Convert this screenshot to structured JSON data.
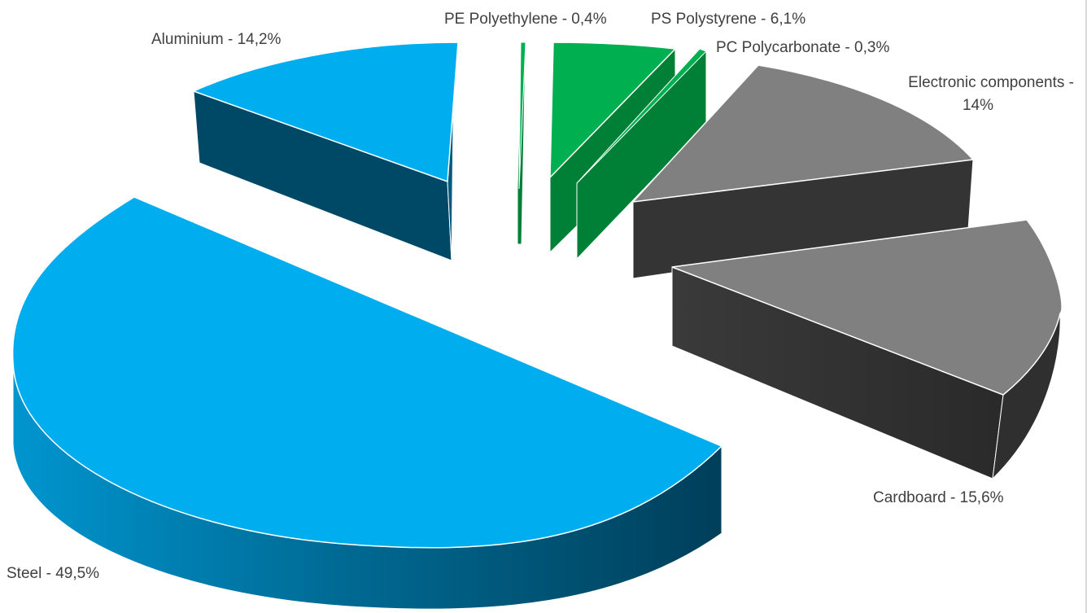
{
  "chart_data": {
    "type": "pie",
    "style": "3d-exploded",
    "slices": [
      {
        "name": "PE Polyethylene",
        "value": 0.4,
        "label": "PE Polyethylene - 0,4%",
        "color": "#00b050",
        "side_color": "#008037"
      },
      {
        "name": "PS Polystyrene",
        "value": 6.1,
        "label": "PS Polystyrene - 6,1%",
        "color": "#00b050",
        "side_color": "#008037"
      },
      {
        "name": "PC Polycarbonate",
        "value": 0.3,
        "label": "PC Polycarbonate - 0,3%",
        "color": "#00b050",
        "side_color": "#008037"
      },
      {
        "name": "Electronic components",
        "value": 14,
        "label_lines": [
          "Electronic components -",
          "14%"
        ],
        "color": "#808080",
        "side_color": "#343434"
      },
      {
        "name": "Cardboard",
        "value": 15.6,
        "label": "Cardboard - 15,6%",
        "color": "#808080",
        "side_color": "#343434"
      },
      {
        "name": "Steel",
        "value": 49.5,
        "label": "Steel - 49,5%",
        "color": "#00aeef",
        "side_color": "#004966"
      },
      {
        "name": "Aluminium",
        "value": 14.2,
        "label": "Aluminium - 14,2%",
        "color": "#00aeef",
        "side_color": "#004966"
      }
    ],
    "legend": "none",
    "data_labels": "outside"
  }
}
